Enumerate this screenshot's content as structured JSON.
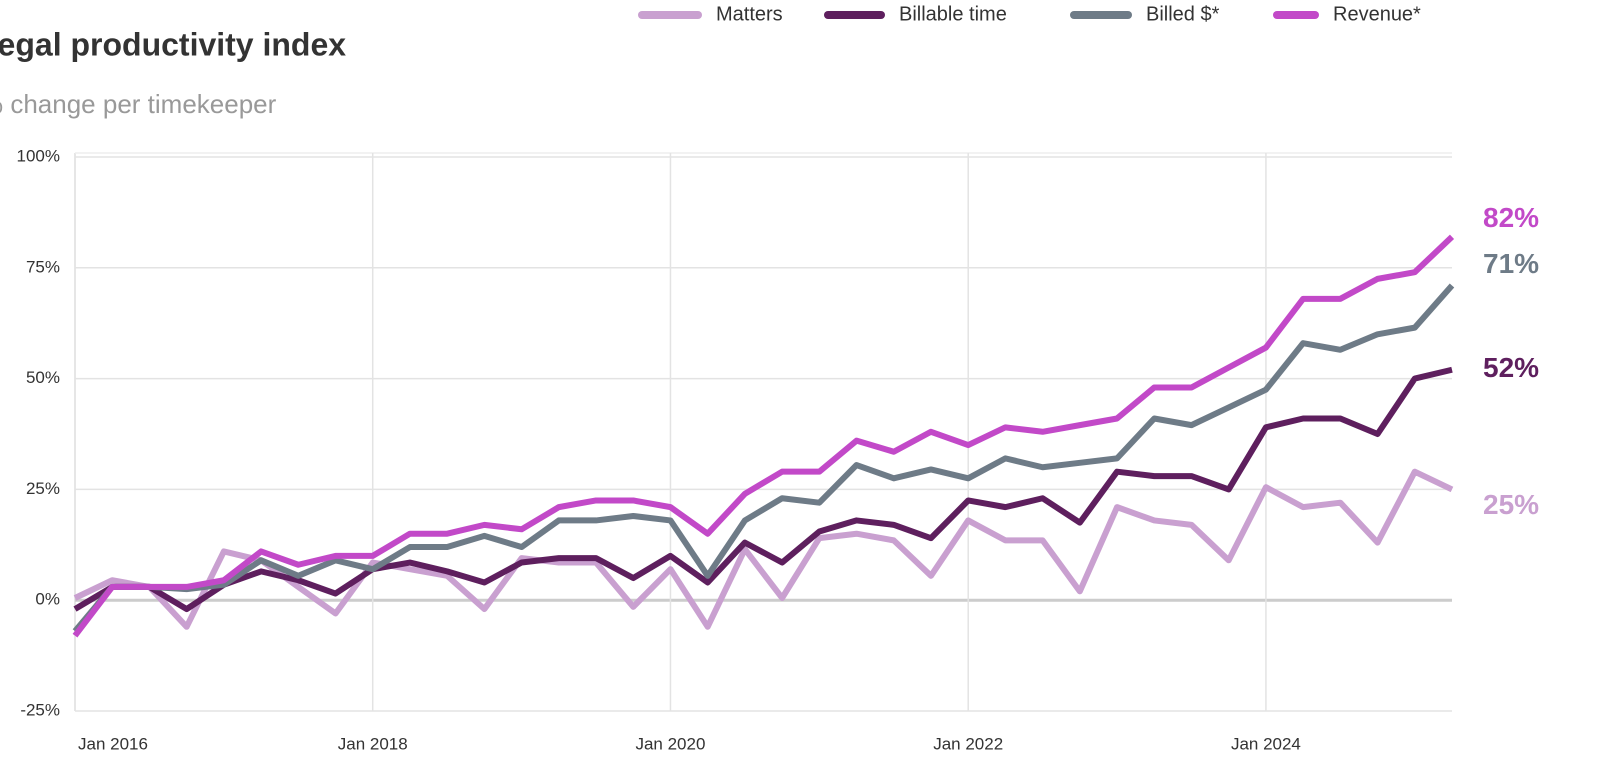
{
  "chart_data": {
    "type": "line",
    "title": "Legal productivity index",
    "subtitle": "% change per timekeeper",
    "x": [
      "2016-01",
      "2016-04",
      "2016-07",
      "2016-10",
      "2017-01",
      "2017-04",
      "2017-07",
      "2017-10",
      "2018-01",
      "2018-04",
      "2018-07",
      "2018-10",
      "2019-01",
      "2019-04",
      "2019-07",
      "2019-10",
      "2020-01",
      "2020-04",
      "2020-07",
      "2020-10",
      "2021-01",
      "2021-04",
      "2021-07",
      "2021-10",
      "2022-01",
      "2022-04",
      "2022-07",
      "2022-10",
      "2023-01",
      "2023-04",
      "2023-07",
      "2023-10",
      "2024-01",
      "2024-04",
      "2024-07",
      "2024-10",
      "2025-01",
      "2025-04"
    ],
    "xlim": [
      "2016-01",
      "2025-04"
    ],
    "xticks": [
      {
        "value": "2016-01",
        "label": "Jan 2016"
      },
      {
        "value": "2018-01",
        "label": "Jan 2018"
      },
      {
        "value": "2020-01",
        "label": "Jan 2020"
      },
      {
        "value": "2022-01",
        "label": "Jan 2022"
      },
      {
        "value": "2024-01",
        "label": "Jan 2024"
      }
    ],
    "ylim": [
      -25,
      100
    ],
    "yticks": [
      {
        "value": -25,
        "label": "-25%"
      },
      {
        "value": 0,
        "label": "0%"
      },
      {
        "value": 25,
        "label": "25%"
      },
      {
        "value": 50,
        "label": "50%"
      },
      {
        "value": 75,
        "label": "75%"
      },
      {
        "value": 100,
        "label": "100%"
      }
    ],
    "grid": true,
    "legend": "top-right",
    "series": [
      {
        "name": "Matters",
        "color": "#c9a0d0",
        "values": [
          0.5,
          4.5,
          3,
          -6,
          11,
          9,
          3,
          -3,
          8.5,
          7,
          5.5,
          -2,
          9.5,
          8.5,
          8.5,
          -1.5,
          7,
          -6,
          11.5,
          0.5,
          14,
          15,
          13.5,
          5.5,
          18,
          13.5,
          13.5,
          2,
          21,
          18,
          17,
          9,
          25.5,
          21,
          22,
          13,
          29,
          25
        ],
        "value_labels": [
          null,
          null,
          null,
          null,
          null,
          null,
          null,
          null,
          null,
          null,
          null,
          null,
          null,
          null,
          null,
          null,
          null,
          null,
          null,
          null,
          null,
          null,
          null,
          null,
          null,
          null,
          null,
          null,
          null,
          null,
          null,
          null,
          null,
          null,
          null,
          null,
          null,
          "25%"
        ]
      },
      {
        "name": "Billable time",
        "color": "#5e1f5e",
        "values": [
          -2,
          3,
          3,
          -2,
          3.5,
          6.5,
          4.5,
          1.5,
          7,
          8.5,
          6.5,
          4,
          8.5,
          9.5,
          9.5,
          5,
          10,
          4,
          13,
          8.5,
          15.5,
          18,
          17,
          14,
          22.5,
          21,
          23,
          17.5,
          29,
          28,
          28,
          25,
          39,
          41,
          41,
          37.5,
          50,
          52
        ],
        "value_labels": [
          null,
          null,
          null,
          null,
          null,
          null,
          null,
          null,
          null,
          null,
          null,
          null,
          null,
          null,
          null,
          null,
          null,
          null,
          null,
          null,
          null,
          null,
          null,
          null,
          null,
          null,
          null,
          null,
          null,
          null,
          null,
          null,
          null,
          null,
          null,
          null,
          null,
          "52%"
        ]
      },
      {
        "name": "Billed $*",
        "color": "#6e7b87",
        "values": [
          -7,
          3,
          3,
          2.5,
          3.5,
          9,
          5.5,
          9,
          7,
          12,
          12,
          14.5,
          12,
          18,
          18,
          19,
          18,
          5.5,
          18,
          23,
          22,
          30.5,
          27.5,
          29.5,
          27.5,
          32,
          30,
          31,
          32,
          41,
          39.5,
          43.5,
          47.5,
          58,
          56.5,
          60,
          61.5,
          71
        ],
        "value_labels": [
          null,
          null,
          null,
          null,
          null,
          null,
          null,
          null,
          null,
          null,
          null,
          null,
          null,
          null,
          null,
          null,
          null,
          null,
          null,
          null,
          null,
          null,
          null,
          null,
          null,
          null,
          null,
          null,
          null,
          null,
          null,
          null,
          null,
          null,
          null,
          null,
          null,
          "71%"
        ]
      },
      {
        "name": "Revenue*",
        "color": "#c249c8",
        "values": [
          -8,
          3,
          3,
          3,
          4.5,
          11,
          8,
          10,
          10,
          15,
          15,
          17,
          16,
          21,
          22.5,
          22.5,
          21,
          15,
          24,
          29,
          29,
          36,
          33.5,
          38,
          35,
          39,
          38,
          39.5,
          41,
          48,
          48,
          52.5,
          57,
          68,
          68,
          72.5,
          74,
          82
        ],
        "value_labels": [
          null,
          null,
          null,
          null,
          null,
          null,
          null,
          null,
          null,
          null,
          null,
          null,
          null,
          null,
          null,
          null,
          null,
          null,
          null,
          null,
          null,
          null,
          null,
          null,
          null,
          null,
          null,
          null,
          null,
          null,
          null,
          null,
          null,
          null,
          null,
          null,
          null,
          "82%"
        ]
      }
    ]
  }
}
